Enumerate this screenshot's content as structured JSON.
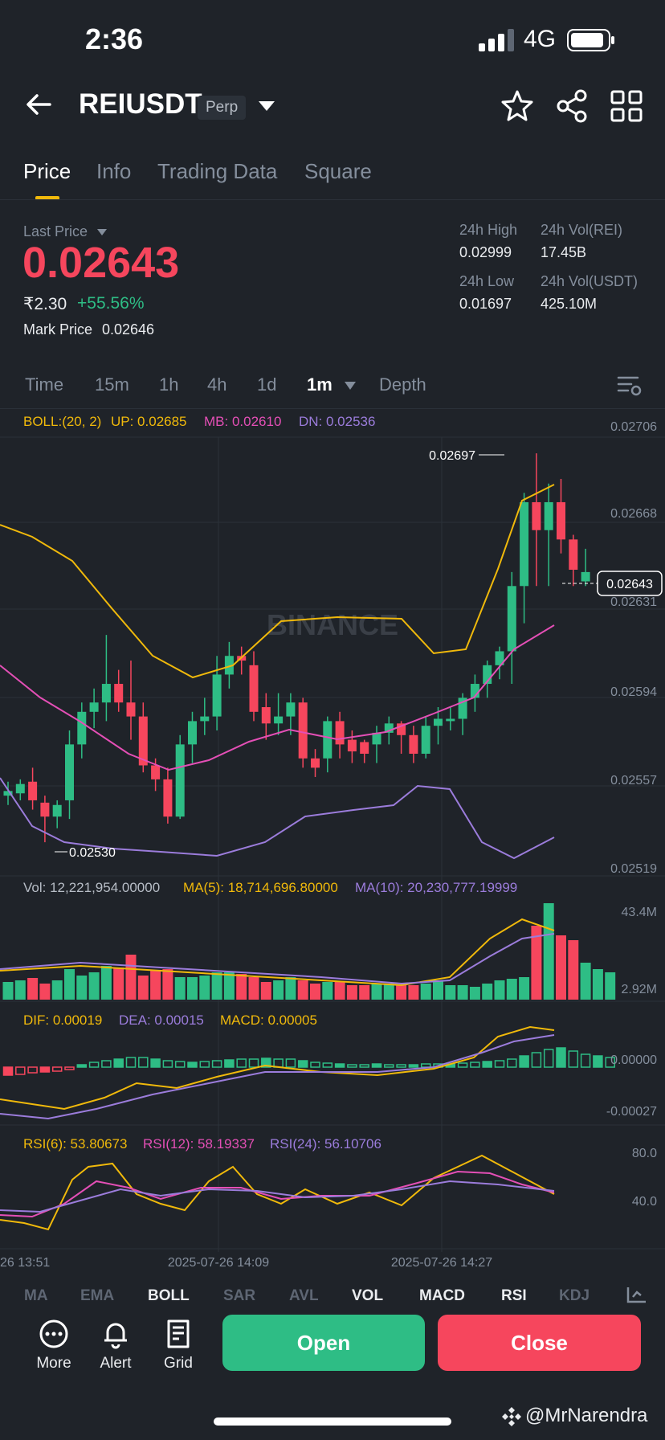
{
  "status_bar": {
    "time": "2:36",
    "network": "4G"
  },
  "header": {
    "symbol": "REIUSDT",
    "badge": "Perp"
  },
  "tabs": [
    "Price",
    "Info",
    "Trading Data",
    "Square"
  ],
  "price": {
    "last_price_label": "Last Price",
    "last_price": "0.02643",
    "inr_price": "₹2.30",
    "change_pct": "+55.56%",
    "mark_price_label": "Mark Price",
    "mark_price": "0.02646"
  },
  "stats": {
    "high_label": "24h High",
    "high": "0.02999",
    "vol_base_label": "24h Vol(REI)",
    "vol_base": "17.45B",
    "low_label": "24h Low",
    "low": "0.01697",
    "vol_quote_label": "24h Vol(USDT)",
    "vol_quote": "425.10M"
  },
  "timeframes": [
    "Time",
    "15m",
    "1h",
    "4h",
    "1d",
    "1m",
    "Depth"
  ],
  "active_timeframe": "1m",
  "chart_labels": {
    "boll": "BOLL:(20, 2)",
    "up": "UP: 0.02685",
    "mb": "MB: 0.02610",
    "dn": "DN: 0.02536",
    "price_axis": [
      "0.02706",
      "0.02668",
      "0.02631",
      "0.02594",
      "0.02557",
      "0.02519"
    ],
    "current_tag": "0.02643",
    "max_mark": "0.02697",
    "min_mark": "0.02530",
    "watermark": "BINANCE",
    "vol": "Vol: 12,221,954.00000",
    "vol_ma5": "MA(5): 18,714,696.80000",
    "vol_ma10": "MA(10): 20,230,777.19999",
    "vol_axis_top": "43.4M",
    "vol_axis_bottom": "2.92M",
    "dif": "DIF: 0.00019",
    "dea": "DEA: 0.00015",
    "macd": "MACD: 0.00005",
    "macd_axis_top": "0.00000",
    "macd_axis_bottom": "-0.00027",
    "rsi6": "RSI(6): 53.80673",
    "rsi12": "RSI(12): 58.19337",
    "rsi24": "RSI(24): 56.10706",
    "rsi_axis_top": "80.0",
    "rsi_axis_bottom": "40.0",
    "time_axis": [
      "26 13:51",
      "2025-07-26 14:09",
      "2025-07-26 14:27"
    ]
  },
  "colors": {
    "up": "#2ebd85",
    "down": "#f6465d",
    "yellow": "#f0b90b",
    "pink": "#e44fb6",
    "purple": "#9b7cdb",
    "bg": "#1f2329"
  },
  "indicators": [
    "MA",
    "EMA",
    "BOLL",
    "SAR",
    "AVL",
    "VOL",
    "MACD",
    "RSI",
    "KDJ"
  ],
  "indicators_on": [
    "BOLL",
    "VOL",
    "MACD",
    "RSI"
  ],
  "actions": {
    "more": "More",
    "alert": "Alert",
    "grid": "Grid",
    "open": "Open",
    "close": "Close"
  },
  "watermark_user": "@MrNarendra"
}
